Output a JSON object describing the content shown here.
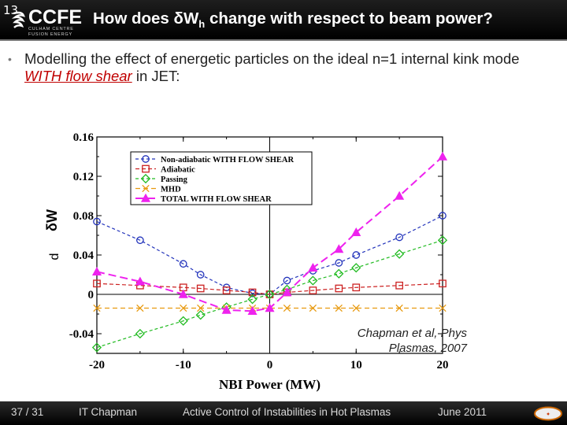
{
  "slide_number": "13",
  "logo": {
    "name": "CCFE",
    "subtitle": "CULHAM CENTRE FUSION ENERGY"
  },
  "title": {
    "main": "How does δW",
    "sub": "h",
    "rest": " change with respect to beam power?"
  },
  "bullet": {
    "before": "Modelling the effect of energetic particles on the ideal n=1 internal kink mode ",
    "emphasis": "WITH flow shear",
    "after": " in JET:"
  },
  "citation": {
    "line1": "Chapman et al,   Phys",
    "line2": "Plasmas, 2007"
  },
  "footer": {
    "page": "37 / 31",
    "author": "IT Chapman",
    "talk": "Active Control of Instabilities in Hot Plasmas",
    "date": "June 2011"
  },
  "chart_data": {
    "type": "line",
    "xlabel": "NBI Power (MW)",
    "ylabel": "δW",
    "ylabel_prefix": "d",
    "xlim": [
      -20,
      20
    ],
    "ylim": [
      -0.06,
      0.16
    ],
    "xticks": [
      -20,
      -10,
      0,
      10,
      20
    ],
    "yticks": [
      -0.04,
      0,
      0.04,
      0.08,
      0.12,
      0.16
    ],
    "ytick_labels": [
      "-0.04",
      "0",
      "0.04",
      "0.08",
      "0.12",
      "0.16"
    ],
    "xtick_labels": [
      "-20",
      "-10",
      "0",
      "10",
      "20"
    ],
    "legend_position": "top-left",
    "series": [
      {
        "name": "Non-adiabatic WITH FLOW SHEAR",
        "color": "#2233bb",
        "marker": "circle",
        "x": [
          -20,
          -15,
          -10,
          -8,
          -5,
          -2,
          0,
          2,
          5,
          8,
          10,
          15,
          20
        ],
        "y": [
          0.074,
          0.055,
          0.031,
          0.02,
          0.007,
          0.001,
          0.0,
          0.014,
          0.024,
          0.032,
          0.04,
          0.058,
          0.08
        ]
      },
      {
        "name": "Adiabatic",
        "color": "#cc2222",
        "marker": "square",
        "x": [
          -20,
          -15,
          -10,
          -8,
          -5,
          -2,
          0,
          2,
          5,
          8,
          10,
          15,
          20
        ],
        "y": [
          0.011,
          0.009,
          0.007,
          0.006,
          0.004,
          0.002,
          0.0,
          0.002,
          0.004,
          0.006,
          0.007,
          0.009,
          0.011
        ]
      },
      {
        "name": "Passing",
        "color": "#22bb22",
        "marker": "diamond",
        "x": [
          -20,
          -15,
          -10,
          -8,
          -5,
          -2,
          0,
          2,
          5,
          8,
          10,
          15,
          20
        ],
        "y": [
          -0.054,
          -0.04,
          -0.027,
          -0.021,
          -0.013,
          -0.005,
          0.0,
          0.005,
          0.014,
          0.021,
          0.027,
          0.041,
          0.055
        ]
      },
      {
        "name": "MHD",
        "color": "#e89a10",
        "marker": "x",
        "x": [
          -20,
          -15,
          -10,
          -8,
          -5,
          -2,
          0,
          2,
          5,
          8,
          10,
          15,
          20
        ],
        "y": [
          -0.014,
          -0.014,
          -0.014,
          -0.014,
          -0.014,
          -0.014,
          -0.014,
          -0.014,
          -0.014,
          -0.014,
          -0.014,
          -0.014,
          -0.014
        ]
      },
      {
        "name": "TOTAL WITH FLOW SHEAR",
        "color": "#ee22ee",
        "marker": "triangle",
        "x": [
          -20,
          -15,
          -10,
          -5,
          -2,
          0,
          2,
          5,
          8,
          10,
          15,
          20
        ],
        "y": [
          0.023,
          0.013,
          0.0,
          -0.016,
          -0.017,
          -0.014,
          0.002,
          0.027,
          0.046,
          0.063,
          0.1,
          0.14
        ]
      }
    ]
  }
}
